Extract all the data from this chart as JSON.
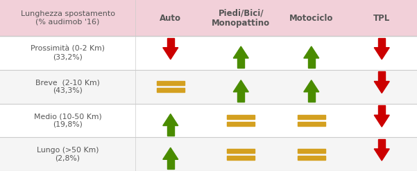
{
  "header_bg": "#f2d0d9",
  "row_bgs": [
    "#ffffff",
    "#f5f5f5",
    "#ffffff",
    "#f5f5f5"
  ],
  "outer_bg": "#fdf0f3",
  "header_text_color": "#555555",
  "row_label_color": "#555555",
  "columns": [
    "Auto",
    "Piedi/Bici/\nMonopattino",
    "Motociclo",
    "TPL"
  ],
  "rows": [
    {
      "label": "Prossimità (0-2 Km)\n(33,2%)",
      "symbols": [
        "down_red",
        "up_green",
        "up_green",
        "down_red"
      ]
    },
    {
      "label": "Breve  (2-10 Km)\n(43,3%)",
      "symbols": [
        "eq_orange",
        "up_green",
        "up_green",
        "down_red"
      ]
    },
    {
      "label": "Medio (10-50 Km)\n(19,8%)",
      "symbols": [
        "up_green",
        "eq_orange",
        "eq_orange",
        "down_red"
      ]
    },
    {
      "label": "Lungo (>50 Km)\n(2,8%)",
      "symbols": [
        "up_green",
        "eq_orange",
        "eq_orange",
        "down_red"
      ]
    }
  ],
  "colors": {
    "down_red": "#cc0000",
    "up_green": "#4a8c00",
    "eq_orange": "#d4a020"
  },
  "figsize": [
    6.01,
    2.47
  ],
  "dpi": 100,
  "line_color": "#cccccc",
  "header_label": "Lunghezza spostamento\n(% audimob '16)"
}
